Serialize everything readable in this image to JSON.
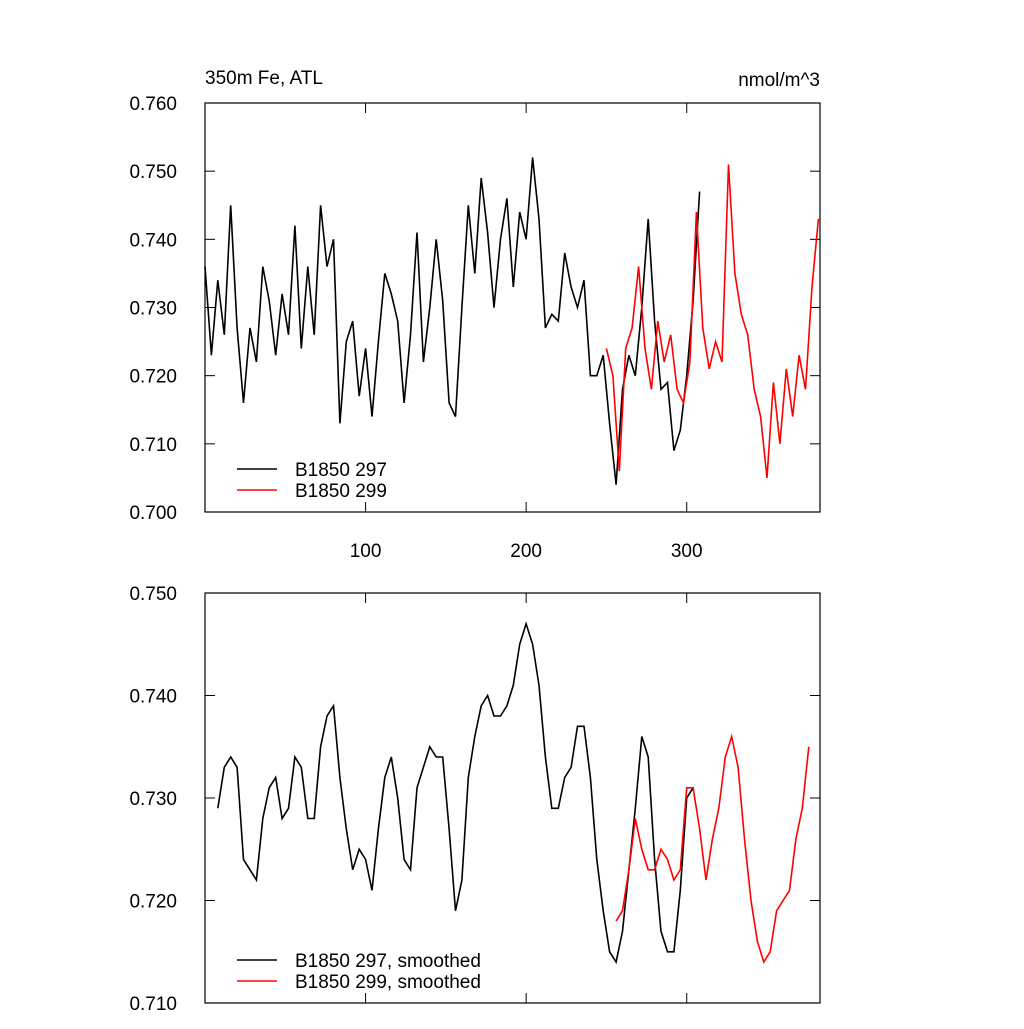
{
  "chart_data": [
    {
      "type": "line",
      "title": "350m Fe, ATL",
      "units": "nmol/m^3",
      "xlim": [
        0,
        383
      ],
      "xticks": [
        100,
        200,
        300
      ],
      "ylim": [
        0.7,
        0.76
      ],
      "yticks": [
        {
          "value": 0.7,
          "label": "0.700"
        },
        {
          "value": 0.71,
          "label": "0.710"
        },
        {
          "value": 0.72,
          "label": "0.720"
        },
        {
          "value": 0.73,
          "label": "0.730"
        },
        {
          "value": 0.74,
          "label": "0.740"
        },
        {
          "value": 0.75,
          "label": "0.750"
        },
        {
          "value": 0.76,
          "label": "0.760"
        }
      ],
      "legend": "lower left",
      "series": [
        {
          "name": "B1850 297",
          "color": "#000000",
          "x": [
            0,
            4,
            8,
            12,
            16,
            20,
            24,
            28,
            32,
            36,
            40,
            44,
            48,
            52,
            56,
            60,
            64,
            68,
            72,
            76,
            80,
            84,
            88,
            92,
            96,
            100,
            104,
            108,
            112,
            116,
            120,
            124,
            128,
            132,
            136,
            140,
            144,
            148,
            152,
            156,
            160,
            164,
            168,
            172,
            176,
            180,
            184,
            188,
            192,
            196,
            200,
            204,
            208,
            212,
            216,
            220,
            224,
            228,
            232,
            236,
            240,
            244,
            248,
            252,
            256,
            260,
            264,
            268,
            272,
            276,
            280,
            284,
            288,
            292,
            296,
            300,
            304,
            308
          ],
          "values": [
            0.736,
            0.723,
            0.734,
            0.726,
            0.745,
            0.727,
            0.716,
            0.727,
            0.722,
            0.736,
            0.731,
            0.723,
            0.732,
            0.726,
            0.742,
            0.724,
            0.736,
            0.726,
            0.745,
            0.736,
            0.74,
            0.713,
            0.725,
            0.728,
            0.717,
            0.724,
            0.714,
            0.725,
            0.735,
            0.732,
            0.728,
            0.716,
            0.726,
            0.741,
            0.722,
            0.73,
            0.74,
            0.731,
            0.716,
            0.714,
            0.73,
            0.745,
            0.735,
            0.749,
            0.741,
            0.73,
            0.74,
            0.746,
            0.733,
            0.744,
            0.74,
            0.752,
            0.743,
            0.727,
            0.729,
            0.728,
            0.738,
            0.733,
            0.73,
            0.734,
            0.72,
            0.72,
            0.723,
            0.713,
            0.704,
            0.718,
            0.723,
            0.72,
            0.73,
            0.743,
            0.728,
            0.718,
            0.719,
            0.709,
            0.712,
            0.72,
            0.731,
            0.747
          ]
        },
        {
          "name": "B1850 299",
          "color": "#ff0000",
          "x": [
            250,
            254,
            258,
            262,
            266,
            270,
            274,
            278,
            282,
            286,
            290,
            294,
            298,
            302,
            306,
            310,
            314,
            318,
            322,
            326,
            330,
            334,
            338,
            342,
            346,
            350,
            354,
            358,
            362,
            366,
            370,
            374,
            378,
            382
          ],
          "values": [
            0.724,
            0.72,
            0.706,
            0.724,
            0.727,
            0.736,
            0.724,
            0.718,
            0.728,
            0.722,
            0.726,
            0.718,
            0.716,
            0.722,
            0.744,
            0.727,
            0.721,
            0.725,
            0.722,
            0.751,
            0.735,
            0.729,
            0.726,
            0.718,
            0.714,
            0.705,
            0.719,
            0.71,
            0.721,
            0.714,
            0.723,
            0.718,
            0.733,
            0.743
          ]
        }
      ]
    },
    {
      "type": "line",
      "xlim": [
        0,
        383
      ],
      "ylim": [
        0.71,
        0.75
      ],
      "yticks": [
        {
          "value": 0.71,
          "label": "0.710"
        },
        {
          "value": 0.72,
          "label": "0.720"
        },
        {
          "value": 0.73,
          "label": "0.730"
        },
        {
          "value": 0.74,
          "label": "0.740"
        },
        {
          "value": 0.75,
          "label": "0.750"
        }
      ],
      "legend": "lower left",
      "series": [
        {
          "name": "B1850 297, smoothed",
          "color": "#000000",
          "x": [
            8,
            12,
            16,
            20,
            24,
            28,
            32,
            36,
            40,
            44,
            48,
            52,
            56,
            60,
            64,
            68,
            72,
            76,
            80,
            84,
            88,
            92,
            96,
            100,
            104,
            108,
            112,
            116,
            120,
            124,
            128,
            132,
            136,
            140,
            144,
            148,
            152,
            156,
            160,
            164,
            168,
            172,
            176,
            180,
            184,
            188,
            192,
            196,
            200,
            204,
            208,
            212,
            216,
            220,
            224,
            228,
            232,
            236,
            240,
            244,
            248,
            252,
            256,
            260,
            264,
            268,
            272,
            276,
            280,
            284,
            288,
            292,
            296,
            300,
            304
          ],
          "values": [
            0.729,
            0.733,
            0.734,
            0.733,
            0.724,
            0.723,
            0.722,
            0.728,
            0.731,
            0.732,
            0.728,
            0.729,
            0.734,
            0.733,
            0.728,
            0.728,
            0.735,
            0.738,
            0.739,
            0.732,
            0.727,
            0.723,
            0.725,
            0.724,
            0.721,
            0.727,
            0.732,
            0.734,
            0.73,
            0.724,
            0.723,
            0.731,
            0.733,
            0.735,
            0.734,
            0.734,
            0.727,
            0.719,
            0.722,
            0.732,
            0.736,
            0.739,
            0.74,
            0.738,
            0.738,
            0.739,
            0.741,
            0.745,
            0.747,
            0.745,
            0.741,
            0.734,
            0.729,
            0.729,
            0.732,
            0.733,
            0.737,
            0.737,
            0.732,
            0.724,
            0.719,
            0.715,
            0.714,
            0.717,
            0.723,
            0.729,
            0.736,
            0.734,
            0.724,
            0.717,
            0.715,
            0.715,
            0.721,
            0.73,
            0.731
          ]
        },
        {
          "name": "B1850 299, smoothed",
          "color": "#ff0000",
          "x": [
            256,
            260,
            264,
            268,
            272,
            276,
            280,
            284,
            288,
            292,
            296,
            300,
            304,
            308,
            312,
            316,
            320,
            324,
            328,
            332,
            336,
            340,
            344,
            348,
            352,
            356,
            360,
            364,
            368,
            372,
            376
          ],
          "values": [
            0.718,
            0.719,
            0.723,
            0.728,
            0.725,
            0.723,
            0.723,
            0.725,
            0.724,
            0.722,
            0.723,
            0.731,
            0.731,
            0.727,
            0.722,
            0.726,
            0.729,
            0.734,
            0.736,
            0.733,
            0.726,
            0.72,
            0.716,
            0.714,
            0.715,
            0.719,
            0.72,
            0.721,
            0.726,
            0.729,
            0.735
          ]
        }
      ]
    }
  ]
}
